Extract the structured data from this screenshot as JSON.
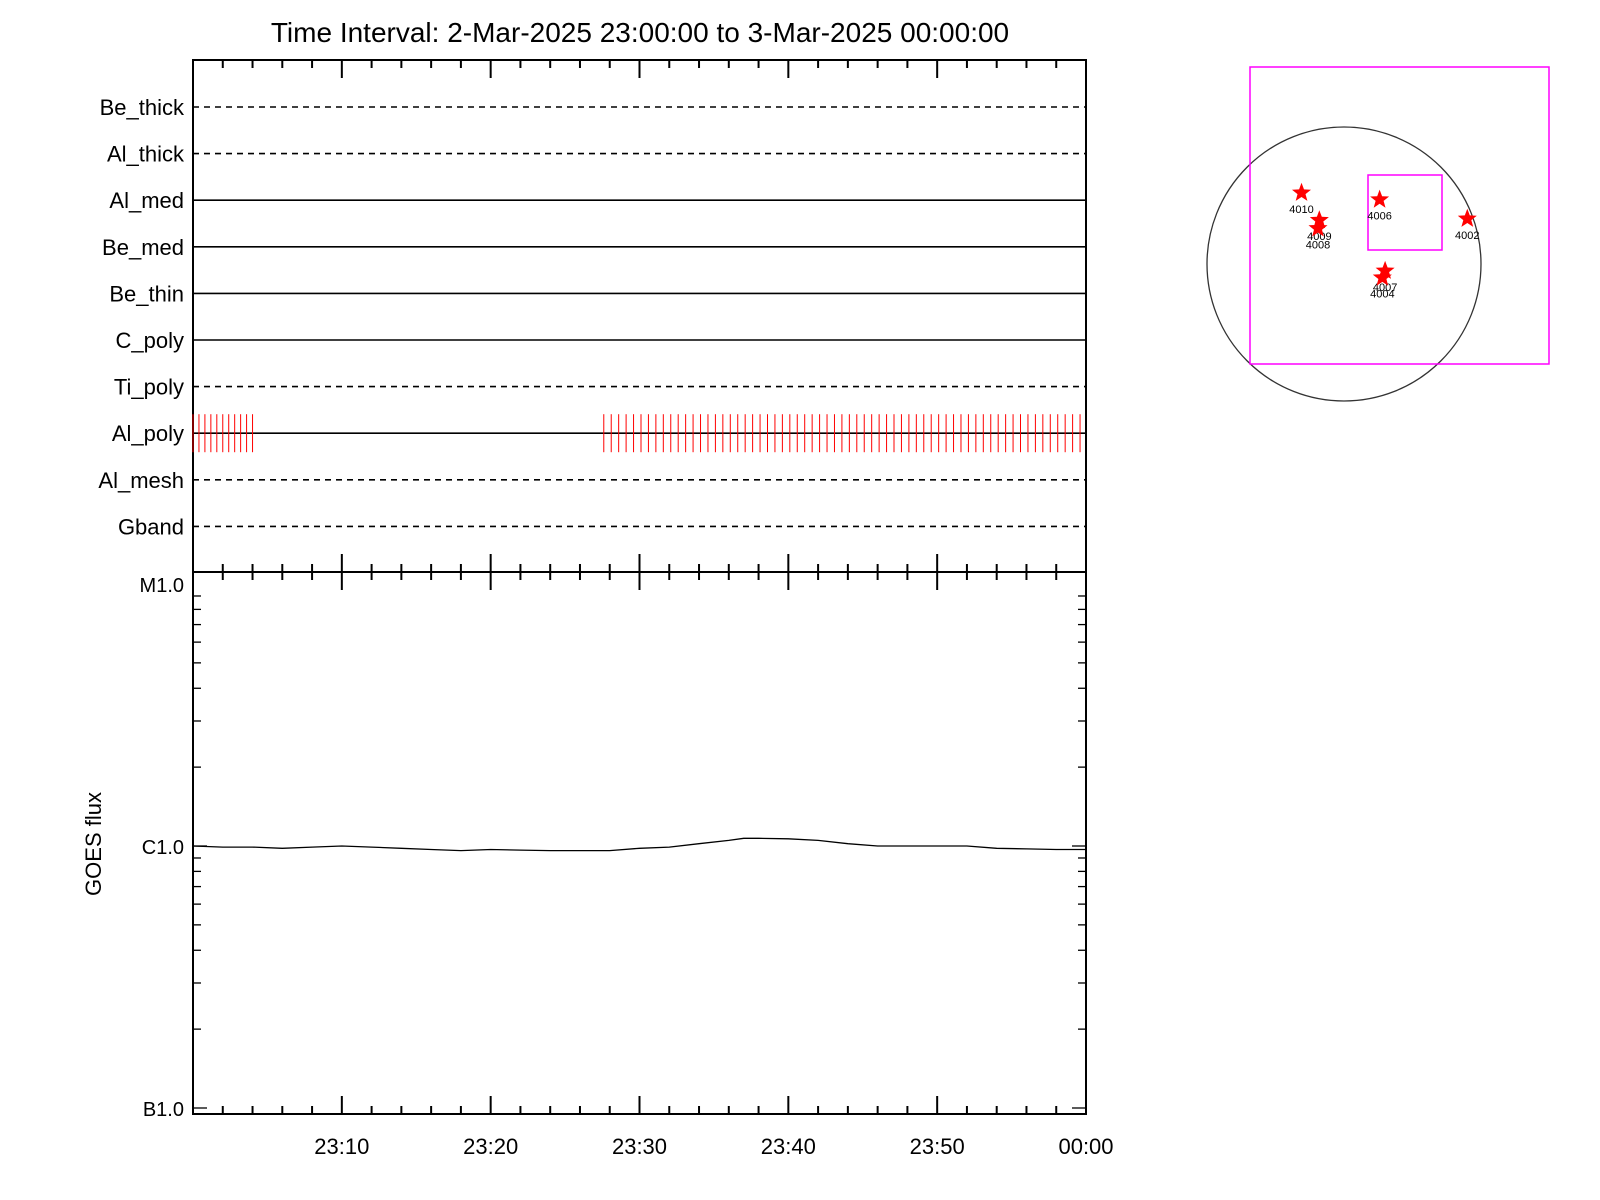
{
  "title": "Time Interval:  2-Mar-2025 23:00:00 to  3-Mar-2025 00:00:00",
  "colors": {
    "axis": "#000000",
    "marks": "#ff0000",
    "fov": "#ff00ff",
    "disk": "#333333"
  },
  "chart_data": [
    {
      "type": "line",
      "panel": "filter-timeline",
      "x_unit": "minutes after 23:00",
      "xlim": [
        0,
        60
      ],
      "rows": [
        {
          "name": "Be_thick",
          "style": "dashed",
          "marks": []
        },
        {
          "name": "Al_thick",
          "style": "dashed",
          "marks": []
        },
        {
          "name": "Al_med",
          "style": "solid",
          "marks": []
        },
        {
          "name": "Be_med",
          "style": "solid",
          "marks": []
        },
        {
          "name": "Be_thin",
          "style": "solid",
          "marks": []
        },
        {
          "name": "C_poly",
          "style": "solid",
          "marks": []
        },
        {
          "name": "Ti_poly",
          "style": "dashed",
          "marks": []
        },
        {
          "name": "Al_poly",
          "style": "solid",
          "marks": [
            {
              "from": 0.0,
              "to": 4.1,
              "step": 0.4
            },
            {
              "from": 27.6,
              "to": 59.7,
              "step": 0.5
            }
          ]
        },
        {
          "name": "Al_mesh",
          "style": "dashed",
          "marks": []
        },
        {
          "name": "Gband",
          "style": "dashed",
          "marks": []
        }
      ]
    },
    {
      "type": "line",
      "panel": "goes",
      "ylabel": "GOES flux",
      "yscale": "log",
      "ytick_labels": [
        "B1.0",
        "C1.0",
        "M1.0"
      ],
      "ylim": [
        "B1.0",
        "M1.0"
      ],
      "x_unit": "minutes after 23:00",
      "xlim": [
        0,
        60
      ],
      "xtick_labels": [
        "23:10",
        "23:20",
        "23:30",
        "23:40",
        "23:50",
        "00:00"
      ],
      "x": [
        0,
        2,
        4,
        6,
        8,
        10,
        12,
        14,
        16,
        18,
        20,
        22,
        24,
        26,
        28,
        30,
        32,
        34,
        36,
        37,
        38,
        40,
        42,
        44,
        46,
        48,
        50,
        52,
        54,
        56,
        58,
        60
      ],
      "y": [
        1e-06,
        9.9e-07,
        9.9e-07,
        9.8e-07,
        9.9e-07,
        1e-06,
        9.9e-07,
        9.8e-07,
        9.7e-07,
        9.6e-07,
        9.7e-07,
        9.65e-07,
        9.6e-07,
        9.6e-07,
        9.6e-07,
        9.8e-07,
        9.9e-07,
        1.02e-06,
        1.05e-06,
        1.07e-06,
        1.07e-06,
        1.065e-06,
        1.05e-06,
        1.02e-06,
        1e-06,
        1e-06,
        1e-06,
        1e-06,
        9.8e-07,
        9.75e-07,
        9.7e-07,
        9.7e-07
      ]
    }
  ],
  "solar_map": {
    "points": [
      {
        "label": "4010",
        "dx": -0.31,
        "dy": 0.52
      },
      {
        "label": "4009",
        "dx": -0.18,
        "dy": 0.32
      },
      {
        "label": "4008",
        "dx": -0.19,
        "dy": 0.26
      },
      {
        "label": "4006",
        "dx": 0.26,
        "dy": 0.47
      },
      {
        "label": "4002",
        "dx": 0.9,
        "dy": 0.33
      },
      {
        "label": "4007",
        "dx": 0.3,
        "dy": -0.05
      },
      {
        "label": "4004",
        "dx": 0.28,
        "dy": -0.1
      }
    ]
  }
}
